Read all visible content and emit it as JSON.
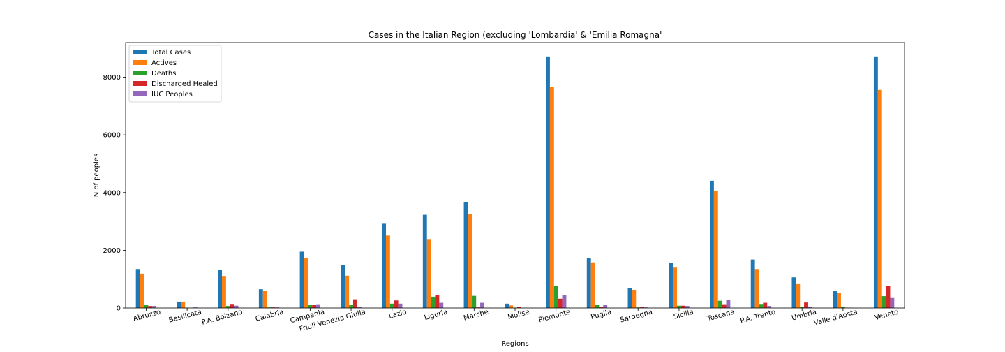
{
  "chart_data": {
    "type": "bar",
    "title": "Cases in the Italian Region (excluding 'Lombardia' & 'Emilia Romagna'",
    "xlabel": "Regions",
    "ylabel": "N of peoples",
    "ylim": [
      0,
      9200
    ],
    "yticks": [
      0,
      2000,
      4000,
      6000,
      8000
    ],
    "grid": false,
    "legend_position": "top-left",
    "categories": [
      "Abruzzo",
      "Basilicata",
      "P.A. Bolzano",
      "Calabria",
      "Campania",
      "Friuli Venezia Giulia",
      "Lazio",
      "Liguria",
      "Marche",
      "Molise",
      "Piemonte",
      "Puglia",
      "Sardegna",
      "Sicilia",
      "Toscana",
      "P.A. Trento",
      "Umbria",
      "Valle d'Aosta",
      "Veneto"
    ],
    "series": [
      {
        "name": "Total Cases",
        "color": "#1f77b4",
        "values": [
          1350,
          220,
          1320,
          650,
          1950,
          1500,
          2920,
          3230,
          3680,
          150,
          8720,
          1720,
          680,
          1570,
          4410,
          1680,
          1060,
          580,
          8720
        ]
      },
      {
        "name": "Actives",
        "color": "#ff7f0e",
        "values": [
          1190,
          220,
          1110,
          600,
          1740,
          1120,
          2510,
          2390,
          3250,
          90,
          7660,
          1580,
          630,
          1400,
          4050,
          1350,
          850,
          530,
          7560
        ]
      },
      {
        "name": "Deaths",
        "color": "#2ca02c",
        "values": [
          100,
          10,
          70,
          20,
          120,
          110,
          150,
          390,
          420,
          10,
          760,
          100,
          20,
          80,
          250,
          140,
          40,
          50,
          410
        ]
      },
      {
        "name": "Discharged Healed",
        "color": "#d62728",
        "values": [
          70,
          0,
          140,
          20,
          100,
          300,
          260,
          450,
          20,
          30,
          320,
          30,
          30,
          80,
          130,
          180,
          190,
          10,
          760
        ]
      },
      {
        "name": "IUC Peoples",
        "color": "#9467bd",
        "values": [
          70,
          20,
          80,
          20,
          130,
          50,
          150,
          180,
          180,
          0,
          460,
          100,
          20,
          70,
          290,
          70,
          50,
          10,
          370
        ]
      }
    ]
  }
}
